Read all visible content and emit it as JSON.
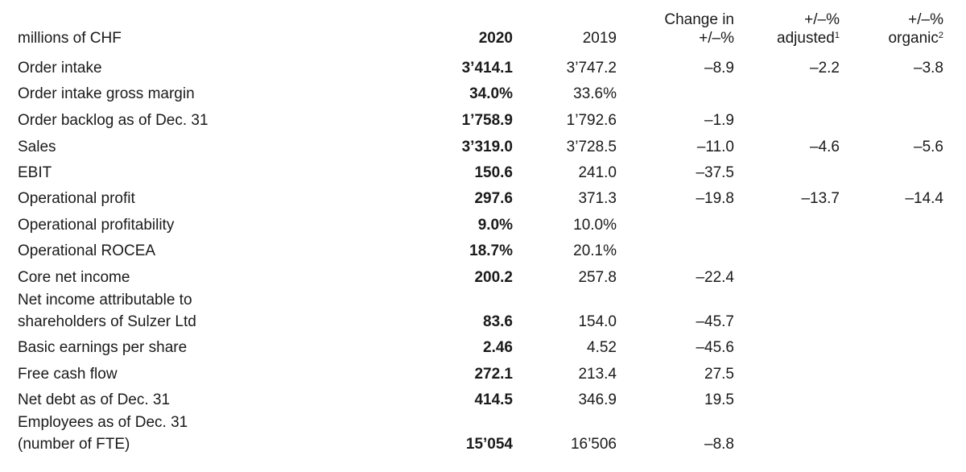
{
  "table": {
    "headers": {
      "label": "millions of CHF",
      "y2020": "2020",
      "y2019": "2019",
      "change_line1": "Change in",
      "change_line2": "+/–%",
      "adjusted_line1": "+/–%",
      "adjusted_line2": "adjusted",
      "adjusted_sup": "1",
      "organic_line1": "+/–%",
      "organic_line2": "organic",
      "organic_sup": "2"
    },
    "rows": [
      {
        "label": "Order intake",
        "v2020": "3’414.1",
        "v2019": "3’747.2",
        "change": "–8.9",
        "adjusted": "–2.2",
        "organic": "–3.8"
      },
      {
        "label": "Order intake gross margin",
        "v2020": "34.0%",
        "v2019": "33.6%",
        "change": "",
        "adjusted": "",
        "organic": ""
      },
      {
        "label": "Order backlog as of Dec. 31",
        "v2020": "1’758.9",
        "v2019": "1’792.6",
        "change": "–1.9",
        "adjusted": "",
        "organic": ""
      },
      {
        "label": "Sales",
        "v2020": "3’319.0",
        "v2019": "3’728.5",
        "change": "–11.0",
        "adjusted": "–4.6",
        "organic": "–5.6"
      },
      {
        "label": "EBIT",
        "v2020": "150.6",
        "v2019": "241.0",
        "change": "–37.5",
        "adjusted": "",
        "organic": ""
      },
      {
        "label": "Operational profit",
        "v2020": "297.6",
        "v2019": "371.3",
        "change": "–19.8",
        "adjusted": "–13.7",
        "organic": "–14.4"
      },
      {
        "label": "Operational profitability",
        "v2020": "9.0%",
        "v2019": "10.0%",
        "change": "",
        "adjusted": "",
        "organic": ""
      },
      {
        "label": "Operational ROCEA",
        "v2020": "18.7%",
        "v2019": "20.1%",
        "change": "",
        "adjusted": "",
        "organic": ""
      },
      {
        "label": "Core net income",
        "v2020": "200.2",
        "v2019": "257.8",
        "change": "–22.4",
        "adjusted": "",
        "organic": ""
      },
      {
        "label": "Net income attributable to",
        "label2": "shareholders of Sulzer Ltd",
        "v2020": "83.6",
        "v2019": "154.0",
        "change": "–45.7",
        "adjusted": "",
        "organic": ""
      },
      {
        "label": "Basic earnings per share",
        "v2020": "2.46",
        "v2019": "4.52",
        "change": "–45.6",
        "adjusted": "",
        "organic": ""
      },
      {
        "label": "Free cash flow",
        "v2020": "272.1",
        "v2019": "213.4",
        "change": "27.5",
        "adjusted": "",
        "organic": ""
      },
      {
        "label": "Net debt as of Dec. 31",
        "v2020": "414.5",
        "v2019": "346.9",
        "change": "19.5",
        "adjusted": "",
        "organic": ""
      },
      {
        "label": "Employees as of Dec. 31",
        "label2": "(number of FTE)",
        "v2020": "15’054",
        "v2019": "16’506",
        "change": "–8.8",
        "adjusted": "",
        "organic": ""
      }
    ]
  }
}
